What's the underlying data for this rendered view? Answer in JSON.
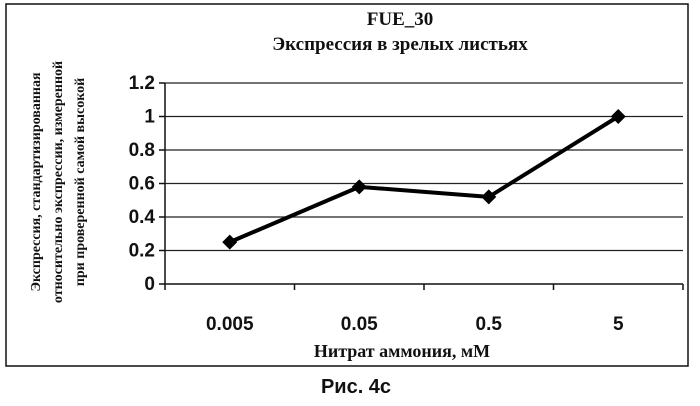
{
  "chart_data": {
    "type": "line",
    "title": "FUE_30",
    "subtitle": "Экспрессия в зрелых листьях",
    "xlabel": "Нитрат аммония, мМ",
    "ylabel_lines": [
      "Экспрессия, стандартизированная",
      "относительно экспрессии, измеренной",
      "при проверенной самой высокой"
    ],
    "categories": [
      "0.005",
      "0.05",
      "0.5",
      "5"
    ],
    "series": [
      {
        "values": [
          0.25,
          0.58,
          0.52,
          1.0
        ]
      }
    ],
    "ylim": [
      0,
      1.2
    ],
    "yticks": [
      "0",
      "0.2",
      "0.4",
      "0.6",
      "0.8",
      "1",
      "1.2"
    ],
    "grid": true,
    "legend": "none",
    "line_color": "#000000",
    "marker": "diamond"
  },
  "caption": "Рис. 4c"
}
